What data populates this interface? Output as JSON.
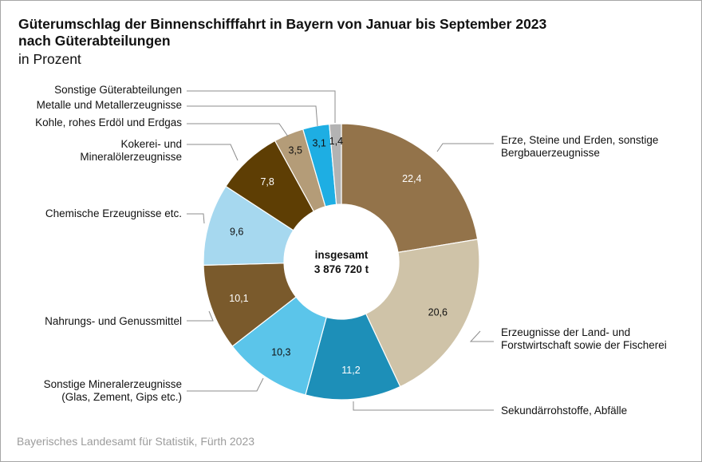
{
  "header": {
    "title_line1": "Güterumschlag der Binnenschifffahrt in Bayern von Januar bis September 2023",
    "title_line2": "nach Güterabteilungen",
    "subtitle": "in Prozent"
  },
  "footer": {
    "source": "Bayerisches Landesamt für Statistik, Fürth 2023"
  },
  "chart_data": {
    "type": "pie",
    "variant": "donut",
    "title": "Güterumschlag der Binnenschifffahrt in Bayern von Januar bis September 2023 nach Güterabteilungen",
    "unit": "in Prozent",
    "center_label": [
      "insgesamt",
      "3 876 720 t"
    ],
    "start": "12 o'clock, clockwise",
    "slices": [
      {
        "label": [
          "Erze, Steine und Erden, sonstige",
          "Bergbauerzeugnisse"
        ],
        "value": 22.4,
        "display": "22,4",
        "color": "#93734a",
        "text_color": "#ffffff"
      },
      {
        "label": [
          "Erzeugnisse der Land- und",
          "Forstwirtschaft sowie der Fischerei"
        ],
        "value": 20.6,
        "display": "20,6",
        "color": "#cfc3a8",
        "text_color": "#111111"
      },
      {
        "label": [
          "Sekundärrohstoffe, Abfälle"
        ],
        "value": 11.2,
        "display": "11,2",
        "color": "#1d8fb8",
        "text_color": "#ffffff"
      },
      {
        "label": [
          "Sonstige Mineralerzeugnisse",
          "(Glas, Zement, Gips etc.)"
        ],
        "value": 10.3,
        "display": "10,3",
        "color": "#5bc5ea",
        "text_color": "#111111"
      },
      {
        "label": [
          "Nahrungs- und Genussmittel"
        ],
        "value": 10.1,
        "display": "10,1",
        "color": "#7a5a2c",
        "text_color": "#ffffff"
      },
      {
        "label": [
          "Chemische Erzeugnisse etc."
        ],
        "value": 9.6,
        "display": "9,6",
        "color": "#a6d8ef",
        "text_color": "#111111"
      },
      {
        "label": [
          "Kokerei- und",
          "Mineralölerzeugnisse"
        ],
        "value": 7.8,
        "display": "7,8",
        "color": "#5e3e04",
        "text_color": "#ffffff"
      },
      {
        "label": [
          "Kohle, rohes Erdöl und Erdgas"
        ],
        "value": 3.5,
        "display": "3,5",
        "color": "#b49c78",
        "text_color": "#111111"
      },
      {
        "label": [
          "Metalle und Metallerzeugnisse"
        ],
        "value": 3.1,
        "display": "3,1",
        "color": "#1eaee3",
        "text_color": "#111111"
      },
      {
        "label": [
          "Sonstige Güterabteilungen"
        ],
        "value": 1.4,
        "display": "1,4",
        "color": "#b3b3b3",
        "text_color": "#111111"
      }
    ]
  }
}
